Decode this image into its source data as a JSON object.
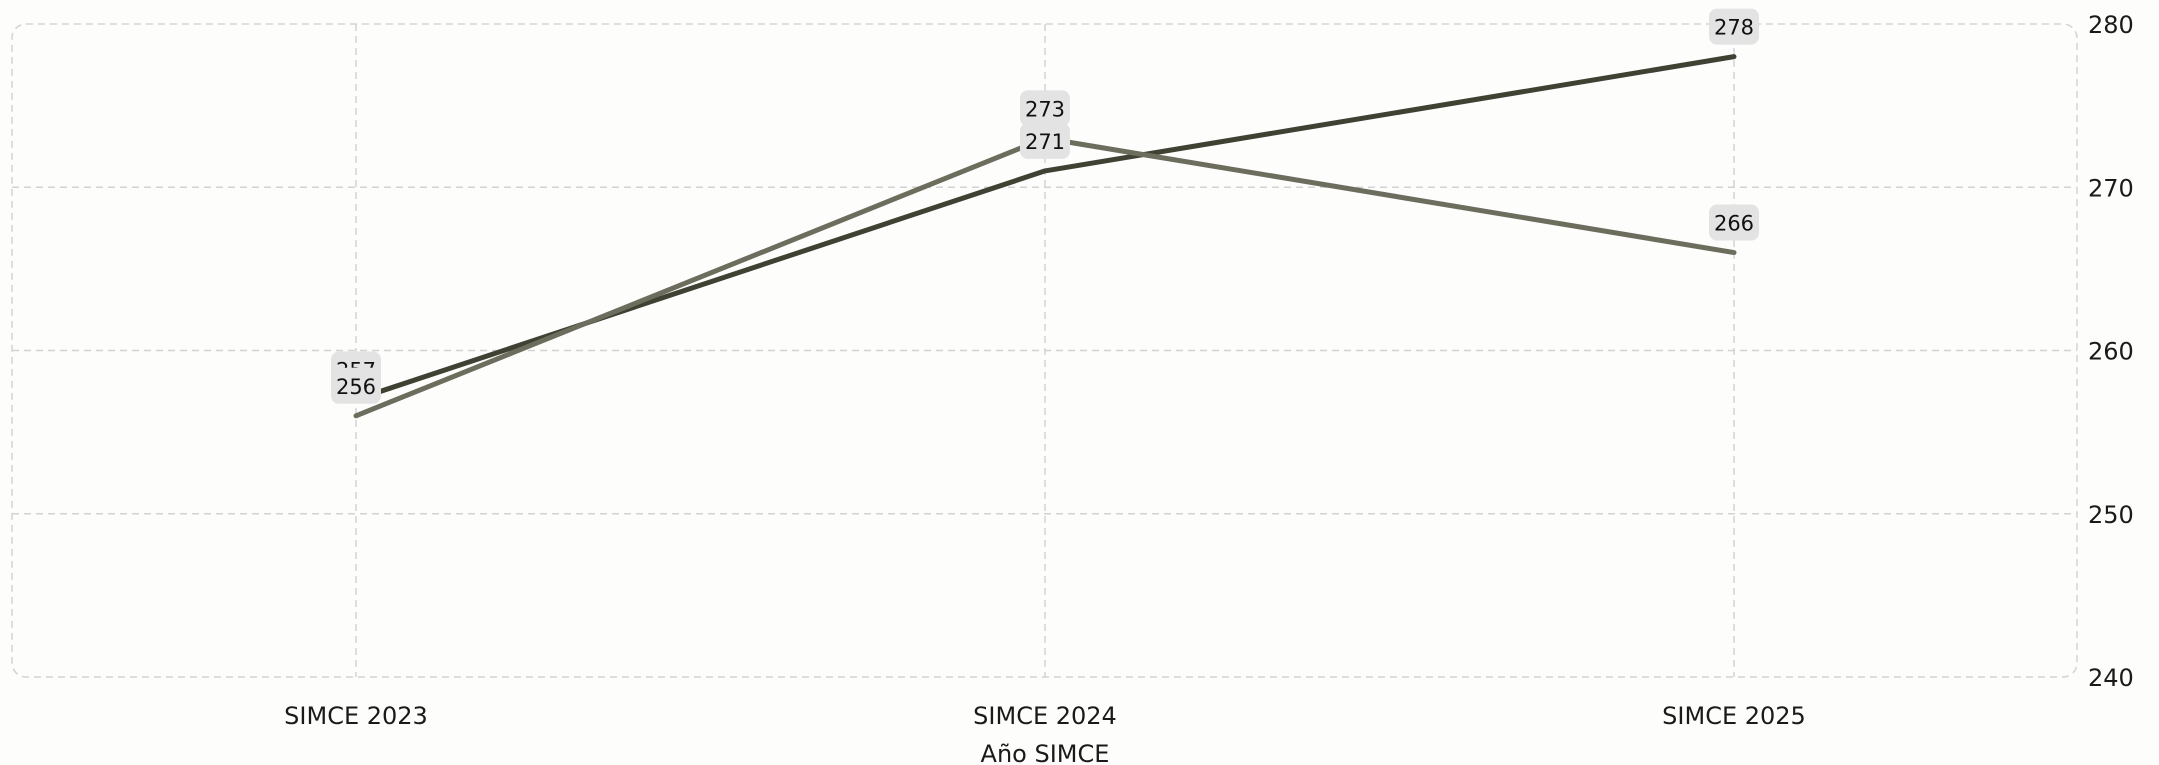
{
  "chart_data": {
    "type": "line",
    "title": "",
    "xlabel": "Año SIMCE",
    "ylabel": "",
    "categories": [
      "SIMCE 2023",
      "SIMCE 2024",
      "SIMCE 2025"
    ],
    "ylim": [
      240,
      280
    ],
    "yticks": [
      240,
      250,
      260,
      270,
      280
    ],
    "y_axis_side": "right",
    "grid": true,
    "legend": "none",
    "series": [
      {
        "values": [
          257,
          271,
          278
        ],
        "color": "#3f4133"
      },
      {
        "values": [
          256,
          273,
          266
        ],
        "color": "#6c6d5c"
      }
    ]
  }
}
